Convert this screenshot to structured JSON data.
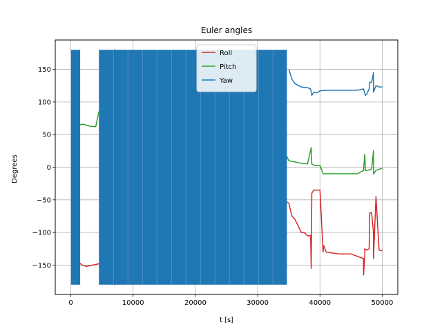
{
  "chart_data": {
    "type": "line",
    "title": "Euler angles",
    "xlabel": "t [s]",
    "ylabel": "Degrees",
    "xlim": [
      -2500,
      52500
    ],
    "ylim": [
      -195,
      195
    ],
    "x_ticks": [
      0,
      10000,
      20000,
      30000,
      40000,
      50000
    ],
    "x_tick_labels": [
      "0",
      "10000",
      "20000",
      "30000",
      "40000",
      "50000"
    ],
    "y_ticks": [
      -150,
      -100,
      -50,
      0,
      50,
      100,
      150
    ],
    "y_tick_labels": [
      "−150",
      "−100",
      "−50",
      "0",
      "50",
      "100",
      "150"
    ],
    "grid": true,
    "legend_position": "top-center",
    "colors": {
      "roll": "#d62728",
      "pitch": "#2ca02c",
      "yaw": "#1f77b4"
    },
    "series": [
      {
        "name": "Roll",
        "color": "#d62728",
        "x": [
          0,
          1000,
          1200,
          1800,
          2500,
          3500,
          4500,
          5000,
          7000,
          7000,
          7000,
          10000,
          20000,
          29000,
          30000,
          32000,
          34000,
          35000,
          35500,
          36000,
          37000,
          37500,
          38000,
          38500,
          38600,
          38700,
          39000,
          39500,
          40000,
          40500,
          40600,
          41000,
          43000,
          45000,
          47000,
          47000,
          47200,
          47200,
          47500,
          47900,
          48000,
          48300,
          48600,
          48600,
          49000,
          49500,
          50000
        ],
        "y": [
          -160,
          -160,
          -145,
          -150,
          -152,
          -150,
          -148,
          -150,
          -160,
          180,
          -180,
          -150,
          -145,
          -80,
          -90,
          -75,
          -50,
          -55,
          -75,
          -80,
          -100,
          -100,
          -105,
          -105,
          -155,
          -40,
          -35,
          -35,
          -35,
          -130,
          -120,
          -130,
          -133,
          -133,
          -140,
          -165,
          -137,
          -125,
          -127,
          -125,
          -70,
          -70,
          -100,
          -140,
          -45,
          -127,
          -128
        ]
      },
      {
        "name": "Pitch",
        "color": "#2ca02c",
        "x": [
          0,
          1000,
          1200,
          2000,
          3000,
          4000,
          4500,
          5000,
          10000,
          15000,
          20000,
          22000,
          25000,
          29000,
          30000,
          32000,
          34000,
          35000,
          36000,
          37000,
          38000,
          38600,
          38700,
          39000,
          40000,
          40500,
          41000,
          43000,
          45000,
          46000,
          47000,
          47200,
          47300,
          48000,
          48300,
          48600,
          48600,
          49000,
          49500,
          50000
        ],
        "y": [
          -2,
          -2,
          65,
          66,
          63,
          62,
          85,
          80,
          75,
          80,
          85,
          90,
          85,
          88,
          80,
          60,
          30,
          10,
          8,
          6,
          5,
          30,
          5,
          3,
          3,
          -10,
          -10,
          -10,
          -10,
          -10,
          -5,
          20,
          -5,
          -4,
          -3,
          25,
          -10,
          -5,
          -3,
          -2
        ]
      },
      {
        "name": "Yaw",
        "color": "#1f77b4",
        "x": [
          35000,
          35500,
          36000,
          37000,
          38000,
          38500,
          38700,
          39000,
          39500,
          40000,
          41000,
          43000,
          45000,
          46000,
          47000,
          47300,
          47500,
          47900,
          48000,
          48300,
          48600,
          48600,
          49000,
          49500,
          50000
        ],
        "y": [
          150,
          135,
          128,
          123,
          122,
          120,
          110,
          115,
          114,
          117,
          118,
          118,
          118,
          118,
          120,
          110,
          112,
          120,
          130,
          130,
          145,
          115,
          125,
          123,
          123
        ]
      }
    ],
    "yaw_dense_region_x": [
      [
        0,
        1500
      ],
      [
        4500,
        34700
      ]
    ],
    "yaw_range": [
      -180,
      180
    ]
  }
}
